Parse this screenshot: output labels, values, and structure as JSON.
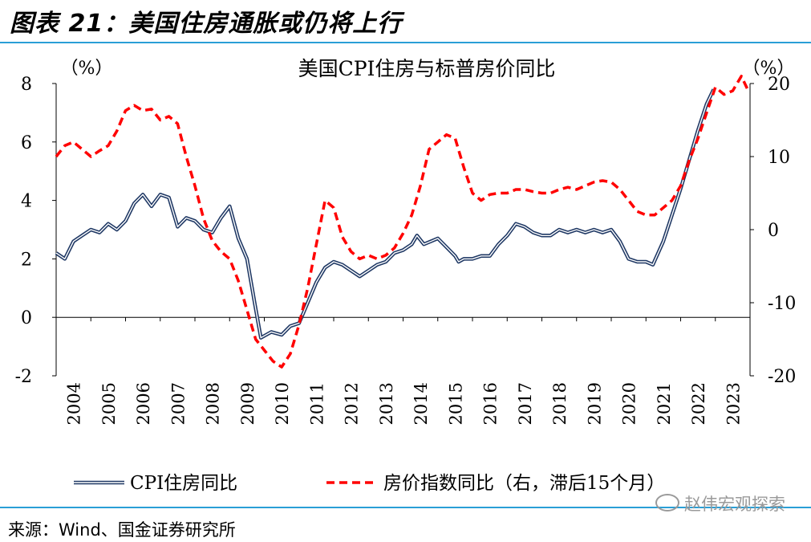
{
  "figure_title": "图表 21：美国住房通胀或仍将上行",
  "source": "来源：Wind、国金证券研究所",
  "watermark": "赵伟宏观探索",
  "colors": {
    "cpi_line": "#1f3864",
    "cpi_inner": "#ffffff",
    "hpi_line": "#ff0000",
    "rule": "#2a9fd6"
  },
  "chart_data": {
    "type": "line",
    "title": "美国CPI住房与标普房价同比",
    "left_axis": {
      "label": "（%）",
      "ylim": [
        -2,
        8
      ],
      "ticks": [
        "8",
        "6",
        "4",
        "2",
        "0",
        "-2"
      ]
    },
    "right_axis": {
      "label": "（%）",
      "ylim": [
        -20,
        20
      ],
      "ticks": [
        "20",
        "10",
        "0",
        "-10",
        "-20"
      ]
    },
    "x_range": [
      2004.0,
      2024.0
    ],
    "x_ticks": [
      "2004",
      "2005",
      "2006",
      "2007",
      "2008",
      "2009",
      "2010",
      "2011",
      "2012",
      "2013",
      "2014",
      "2015",
      "2016",
      "2017",
      "2018",
      "2019",
      "2020",
      "2021",
      "2022",
      "2023"
    ],
    "legend_position": "bottom",
    "series": [
      {
        "name": "CPI住房同比",
        "axis": "left",
        "style": "double-line",
        "points": [
          [
            2004.0,
            2.2
          ],
          [
            2004.25,
            2.0
          ],
          [
            2004.5,
            2.6
          ],
          [
            2004.75,
            2.8
          ],
          [
            2005.0,
            3.0
          ],
          [
            2005.25,
            2.9
          ],
          [
            2005.5,
            3.2
          ],
          [
            2005.75,
            3.0
          ],
          [
            2006.0,
            3.3
          ],
          [
            2006.25,
            3.9
          ],
          [
            2006.5,
            4.2
          ],
          [
            2006.75,
            3.8
          ],
          [
            2007.0,
            4.2
          ],
          [
            2007.25,
            4.1
          ],
          [
            2007.5,
            3.1
          ],
          [
            2007.75,
            3.4
          ],
          [
            2008.0,
            3.3
          ],
          [
            2008.25,
            3.0
          ],
          [
            2008.5,
            2.9
          ],
          [
            2008.75,
            3.4
          ],
          [
            2009.0,
            3.8
          ],
          [
            2009.25,
            2.7
          ],
          [
            2009.5,
            2.0
          ],
          [
            2009.75,
            0.3
          ],
          [
            2009.9,
            -0.7
          ],
          [
            2010.2,
            -0.5
          ],
          [
            2010.5,
            -0.6
          ],
          [
            2010.75,
            -0.3
          ],
          [
            2011.0,
            -0.2
          ],
          [
            2011.25,
            0.5
          ],
          [
            2011.5,
            1.2
          ],
          [
            2011.75,
            1.7
          ],
          [
            2012.0,
            1.9
          ],
          [
            2012.25,
            1.8
          ],
          [
            2012.5,
            1.6
          ],
          [
            2012.75,
            1.4
          ],
          [
            2013.0,
            1.6
          ],
          [
            2013.25,
            1.8
          ],
          [
            2013.5,
            1.9
          ],
          [
            2013.75,
            2.2
          ],
          [
            2014.0,
            2.3
          ],
          [
            2014.25,
            2.5
          ],
          [
            2014.4,
            2.8
          ],
          [
            2014.6,
            2.5
          ],
          [
            2014.8,
            2.6
          ],
          [
            2015.0,
            2.7
          ],
          [
            2015.25,
            2.4
          ],
          [
            2015.5,
            2.1
          ],
          [
            2015.6,
            1.9
          ],
          [
            2015.75,
            2.0
          ],
          [
            2016.0,
            2.0
          ],
          [
            2016.25,
            2.1
          ],
          [
            2016.5,
            2.1
          ],
          [
            2016.75,
            2.5
          ],
          [
            2017.0,
            2.8
          ],
          [
            2017.25,
            3.2
          ],
          [
            2017.5,
            3.1
          ],
          [
            2017.75,
            2.9
          ],
          [
            2018.0,
            2.8
          ],
          [
            2018.25,
            2.8
          ],
          [
            2018.5,
            3.0
          ],
          [
            2018.75,
            2.9
          ],
          [
            2019.0,
            3.0
          ],
          [
            2019.25,
            2.9
          ],
          [
            2019.5,
            3.0
          ],
          [
            2019.75,
            2.9
          ],
          [
            2020.0,
            3.0
          ],
          [
            2020.25,
            2.6
          ],
          [
            2020.5,
            2.0
          ],
          [
            2020.75,
            1.9
          ],
          [
            2021.0,
            1.9
          ],
          [
            2021.2,
            1.8
          ],
          [
            2021.5,
            2.6
          ],
          [
            2021.75,
            3.5
          ],
          [
            2022.0,
            4.4
          ],
          [
            2022.25,
            5.4
          ],
          [
            2022.5,
            6.4
          ],
          [
            2022.75,
            7.3
          ],
          [
            2022.95,
            7.8
          ]
        ]
      },
      {
        "name": "房价指数同比（右，滞后15个月）",
        "axis": "right",
        "style": "dashed",
        "points": [
          [
            2004.0,
            10
          ],
          [
            2004.25,
            11.5
          ],
          [
            2004.5,
            12
          ],
          [
            2004.75,
            11
          ],
          [
            2005.0,
            10
          ],
          [
            2005.25,
            10.8
          ],
          [
            2005.5,
            11.5
          ],
          [
            2005.75,
            13.5
          ],
          [
            2006.0,
            16.3
          ],
          [
            2006.25,
            17
          ],
          [
            2006.5,
            16.3
          ],
          [
            2006.75,
            16.5
          ],
          [
            2007.0,
            15
          ],
          [
            2007.25,
            15.5
          ],
          [
            2007.5,
            14.5
          ],
          [
            2007.75,
            10
          ],
          [
            2008.0,
            6
          ],
          [
            2008.25,
            1.5
          ],
          [
            2008.5,
            -1.5
          ],
          [
            2008.75,
            -3
          ],
          [
            2009.0,
            -4
          ],
          [
            2009.25,
            -7
          ],
          [
            2009.5,
            -11
          ],
          [
            2009.75,
            -15
          ],
          [
            2010.0,
            -16.5
          ],
          [
            2010.25,
            -18
          ],
          [
            2010.5,
            -18.8
          ],
          [
            2010.75,
            -17
          ],
          [
            2011.0,
            -13
          ],
          [
            2011.25,
            -8
          ],
          [
            2011.5,
            -2
          ],
          [
            2011.75,
            4
          ],
          [
            2012.0,
            3
          ],
          [
            2012.25,
            -1
          ],
          [
            2012.5,
            -3
          ],
          [
            2012.75,
            -4
          ],
          [
            2013.0,
            -3.5
          ],
          [
            2013.25,
            -4
          ],
          [
            2013.5,
            -3.5
          ],
          [
            2013.75,
            -2.5
          ],
          [
            2014.0,
            -0.5
          ],
          [
            2014.25,
            2
          ],
          [
            2014.5,
            6
          ],
          [
            2014.75,
            11
          ],
          [
            2015.0,
            12
          ],
          [
            2015.25,
            13
          ],
          [
            2015.5,
            12.5
          ],
          [
            2015.75,
            8.5
          ],
          [
            2016.0,
            5
          ],
          [
            2016.25,
            4
          ],
          [
            2016.5,
            4.8
          ],
          [
            2016.75,
            5
          ],
          [
            2017.0,
            5
          ],
          [
            2017.25,
            5.5
          ],
          [
            2017.5,
            5.5
          ],
          [
            2017.75,
            5.2
          ],
          [
            2018.0,
            5
          ],
          [
            2018.25,
            5
          ],
          [
            2018.5,
            5.5
          ],
          [
            2018.75,
            5.8
          ],
          [
            2019.0,
            5.5
          ],
          [
            2019.25,
            6
          ],
          [
            2019.5,
            6.5
          ],
          [
            2019.75,
            6.7
          ],
          [
            2020.0,
            6.5
          ],
          [
            2020.25,
            5.5
          ],
          [
            2020.5,
            4
          ],
          [
            2020.75,
            2.5
          ],
          [
            2021.0,
            2
          ],
          [
            2021.25,
            2
          ],
          [
            2021.5,
            3
          ],
          [
            2021.75,
            4
          ],
          [
            2022.0,
            6
          ],
          [
            2022.25,
            9.5
          ],
          [
            2022.5,
            12.5
          ],
          [
            2022.75,
            16
          ],
          [
            2023.0,
            19.5
          ],
          [
            2023.25,
            18.5
          ],
          [
            2023.5,
            19
          ],
          [
            2023.75,
            21
          ],
          [
            2023.95,
            19
          ]
        ]
      }
    ]
  }
}
